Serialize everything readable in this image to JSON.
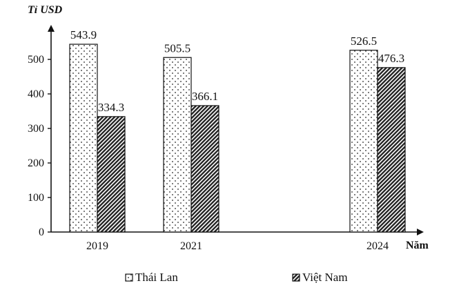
{
  "chart_data": {
    "type": "bar",
    "ylabel": "Tỉ USD",
    "xlabel": "Năm",
    "categories": [
      "2019",
      "2021",
      "2024"
    ],
    "series": [
      {
        "name": "Thái Lan",
        "values": [
          543.9,
          505.5,
          526.5
        ],
        "pattern": "dots"
      },
      {
        "name": "Việt Nam",
        "values": [
          334.3,
          366.1,
          476.3
        ],
        "pattern": "diagonal-hatch"
      }
    ],
    "y_ticks": [
      0,
      100,
      200,
      300,
      400,
      500
    ],
    "ylim": [
      0,
      560
    ],
    "grid": false,
    "legend_position": "bottom"
  }
}
